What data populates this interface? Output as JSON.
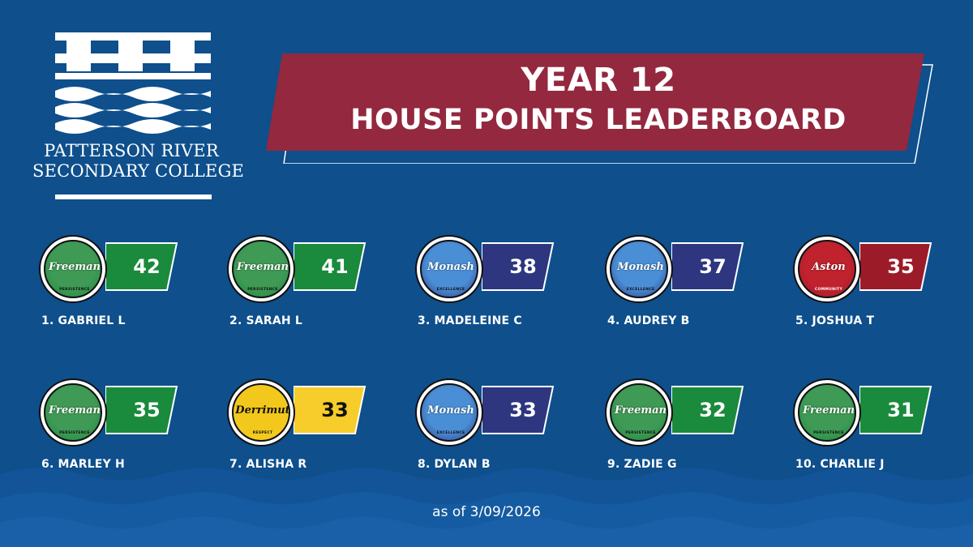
{
  "school": {
    "name_line1": "PATTERSON RIVER",
    "name_line2": "SECONDARY COLLEGE"
  },
  "banner": {
    "title_line1": "YEAR 12",
    "title_line2": "HOUSE POINTS LEADERBOARD"
  },
  "houses": {
    "Freeman": {
      "label": "Freeman",
      "motto": "PERSISTENCE",
      "color": "#1a8a3c",
      "badge_color": "#3f9a55",
      "text_dark": false
    },
    "Monash": {
      "label": "Monash",
      "motto": "EXCELLENCE",
      "color": "#2e3680",
      "badge_color": "#4a8fd6",
      "text_dark": false
    },
    "Aston": {
      "label": "Aston",
      "motto": "COMMUNITY",
      "color": "#9c1b28",
      "badge_color": "#c0222e",
      "text_dark": false
    },
    "Derrimut": {
      "label": "Derrimut",
      "motto": "RESPECT",
      "color": "#f6cd2a",
      "badge_color": "#f2c81c",
      "text_dark": true
    }
  },
  "leaderboard": [
    {
      "rank_name": "1.  GABRIEL L",
      "house": "Freeman",
      "points": "42"
    },
    {
      "rank_name": "2.  SARAH L",
      "house": "Freeman",
      "points": "41"
    },
    {
      "rank_name": "3.  MADELEINE C",
      "house": "Monash",
      "points": "38"
    },
    {
      "rank_name": "4.  AUDREY B",
      "house": "Monash",
      "points": "37"
    },
    {
      "rank_name": "5.  JOSHUA T",
      "house": "Aston",
      "points": "35"
    },
    {
      "rank_name": "6. MARLEY H",
      "house": "Freeman",
      "points": "35"
    },
    {
      "rank_name": "7. ALISHA R",
      "house": "Derrimut",
      "points": "33"
    },
    {
      "rank_name": "8.  DYLAN B",
      "house": "Monash",
      "points": "33"
    },
    {
      "rank_name": "9.  ZADIE G",
      "house": "Freeman",
      "points": "32"
    },
    {
      "rank_name": "10. CHARLIE J",
      "house": "Freeman",
      "points": "31"
    }
  ],
  "footer": {
    "as_of": "as of 3/09/2026"
  },
  "colors": {
    "background": "#0e4f8c",
    "banner": "#93283f",
    "white": "#ffffff"
  }
}
